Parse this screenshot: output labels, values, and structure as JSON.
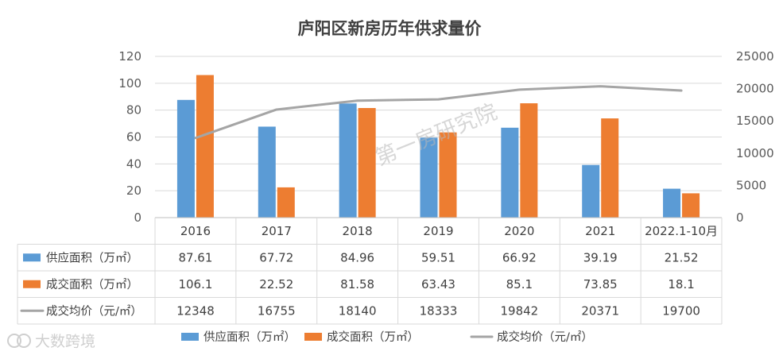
{
  "chart_data": {
    "type": "bar",
    "title": "庐阳区新房历年供求量价",
    "categories": [
      "2016",
      "2017",
      "2018",
      "2019",
      "2020",
      "2021",
      "2022.1-10月"
    ],
    "series": [
      {
        "name": "供应面积（万㎡）",
        "kind": "bar",
        "axis": "left",
        "color": "#5B9BD5",
        "values": [
          87.61,
          67.72,
          84.96,
          59.51,
          66.92,
          39.19,
          21.52
        ],
        "labels": [
          "87.61",
          "67.72",
          "84.96",
          "59.51",
          "66.92",
          "39.19",
          "21.52"
        ]
      },
      {
        "name": "成交面积（万㎡）",
        "kind": "bar",
        "axis": "left",
        "color": "#ED7D31",
        "values": [
          106.1,
          22.52,
          81.58,
          63.43,
          85.1,
          73.85,
          18.1
        ],
        "labels": [
          "106.1",
          "22.52",
          "81.58",
          "63.43",
          "85.1",
          "73.85",
          "18.1"
        ]
      },
      {
        "name": "成交均价（元/㎡）",
        "kind": "line",
        "axis": "right",
        "color": "#A5A5A5",
        "values": [
          12348,
          16755,
          18140,
          18333,
          19842,
          20371,
          19700
        ],
        "labels": [
          "12348",
          "16755",
          "18140",
          "18333",
          "19842",
          "20371",
          "19700"
        ]
      }
    ],
    "y_left": {
      "min": 0,
      "max": 120,
      "ticks": [
        "0",
        "20",
        "40",
        "60",
        "80",
        "100",
        "120"
      ]
    },
    "y_right": {
      "min": 0,
      "max": 25000,
      "ticks": [
        "0",
        "5000",
        "10000",
        "15000",
        "20000",
        "25000"
      ]
    },
    "grid": true,
    "legend_position": "bottom",
    "data_table": true
  },
  "overlay": {
    "watermark": "第一房研究院",
    "brand": "大数跨境"
  }
}
